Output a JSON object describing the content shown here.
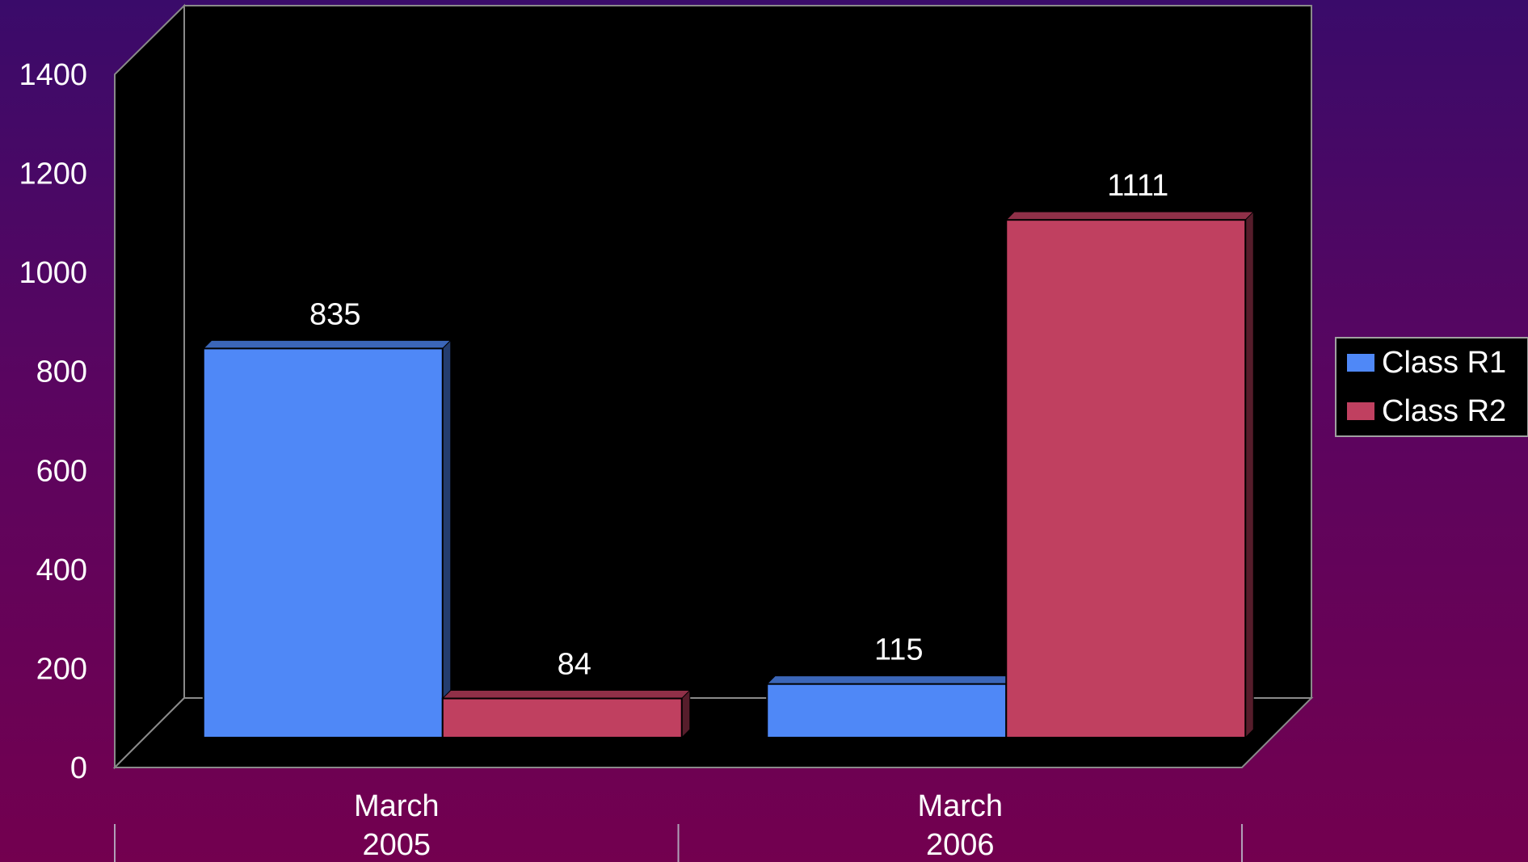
{
  "chart_data": {
    "type": "bar",
    "categories": [
      [
        "March",
        "2005"
      ],
      [
        "March",
        "2006"
      ]
    ],
    "series": [
      {
        "name": "Class R1",
        "values": [
          835,
          115
        ],
        "color": "#4f88f7"
      },
      {
        "name": "Class R2",
        "values": [
          84,
          1111
        ],
        "color": "#c04060"
      }
    ],
    "ylim": [
      0,
      1400
    ],
    "yticks": [
      0,
      200,
      400,
      600,
      800,
      1000,
      1200,
      1400
    ],
    "legend_position": "right",
    "background": "#000000",
    "gridlines": false,
    "three_d": true
  }
}
